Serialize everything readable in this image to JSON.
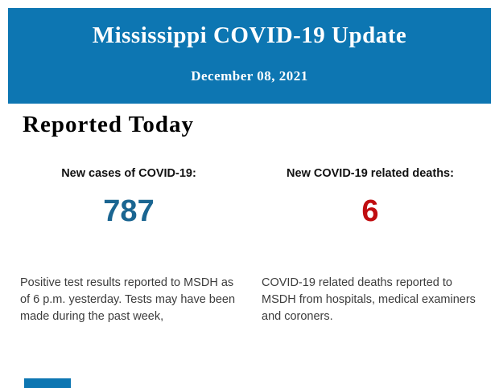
{
  "colors": {
    "header_background": "#0d76b2",
    "header_text": "#ffffff",
    "heading_text": "#000000",
    "cases_value_blue": "#1a6591",
    "deaths_value_red": "#c00d10",
    "body_text": "#3c3c3c"
  },
  "header": {
    "title": "Mississippi COVID-19 Update",
    "date": "December 08, 2021"
  },
  "main": {
    "section_heading": "Reported Today"
  },
  "stats": [
    {
      "label": "New cases of COVID-19:",
      "value": "787",
      "description": "Positive test results reported to MSDH as of 6 p.m. yesterday. Tests may have been made during the past week,"
    },
    {
      "label": "New COVID-19 related deaths:",
      "value": "6",
      "description": "COVID-19 related deaths reported to MSDH from hospitals, medical examiners and coroners."
    }
  ]
}
